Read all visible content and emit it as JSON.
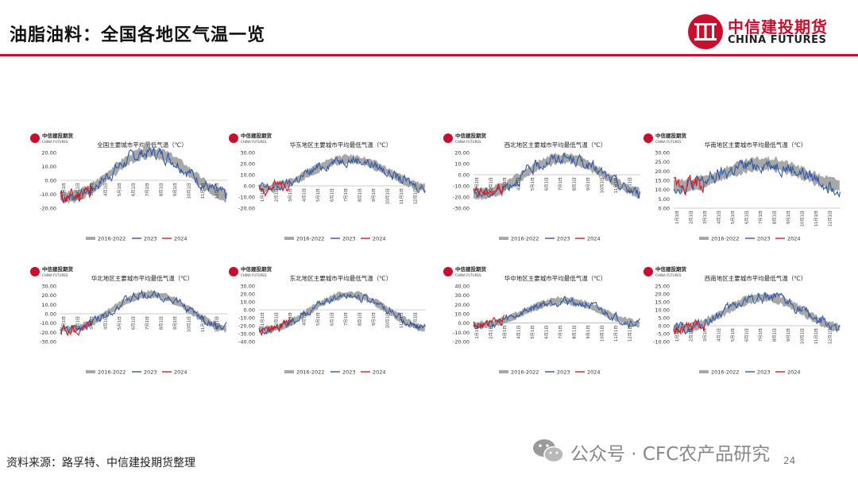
{
  "page": {
    "title": "油脂油料：全国各地区气温一览",
    "logo_cn": "中信建投期货",
    "logo_en": "CHINA FUTURES",
    "source": "资料来源：路孚特、中信建投期货整理",
    "watermark": "公众号 · CFC农产品研究",
    "page_number": "24",
    "mini_logo_cn": "中信建投期货",
    "mini_logo_en": "CHINA FUTURES"
  },
  "colors": {
    "brand_red": "#c8102e",
    "band": "#a8a8a8",
    "line_2023": "#2f58a6",
    "line_2024": "#d42027"
  },
  "legend": [
    "2016-2022",
    "2023",
    "2024"
  ],
  "months": [
    "1月1日",
    "2月1日",
    "3月1日",
    "4月1日",
    "5月1日",
    "6月1日",
    "7月1日",
    "8月1日",
    "9月1日",
    "10月1日",
    "11月1日",
    "12月1日"
  ],
  "chart_data": [
    {
      "type": "line",
      "title": "全国主要城市平均最低气温（℃）",
      "yticks": [
        "20.00",
        "10.00",
        "0.00",
        "-10.00",
        "-20.00"
      ],
      "ylim": [
        -20,
        20
      ],
      "params": {
        "mean": 4,
        "amp": 16,
        "band": 3.5
      },
      "series": [
        {
          "name": "2016-2022",
          "kind": "range band"
        },
        {
          "name": "2023"
        },
        {
          "name": "2024"
        }
      ]
    },
    {
      "type": "line",
      "title": "华东地区主要城市平均最低气温（℃）",
      "yticks": [
        "30.00",
        "20.00",
        "10.00",
        "0.00",
        "-10.00",
        "-20.00"
      ],
      "ylim": [
        -20,
        30
      ],
      "params": {
        "mean": 11,
        "amp": 13,
        "band": 3.5
      },
      "series": [
        {
          "name": "2016-2022",
          "kind": "range band"
        },
        {
          "name": "2023"
        },
        {
          "name": "2024"
        }
      ]
    },
    {
      "type": "line",
      "title": "西北地区主要城市平均最低气温（℃）",
      "yticks": [
        "20.00",
        "10.00",
        "0.00",
        "-10.00",
        "-20.00",
        "-30.00"
      ],
      "ylim": [
        -30,
        20
      ],
      "params": {
        "mean": -1,
        "amp": 16,
        "band": 4
      },
      "series": [
        {
          "name": "2016-2022",
          "kind": "range band"
        },
        {
          "name": "2023"
        },
        {
          "name": "2024"
        }
      ]
    },
    {
      "type": "line",
      "title": "华南地区主要城市平均最低气温（℃）",
      "yticks": [
        "30.00",
        "25.00",
        "20.00",
        "15.00",
        "10.00",
        "5.00",
        "0.00"
      ],
      "ylim": [
        0,
        30
      ],
      "params": {
        "mean": 18,
        "amp": 6,
        "band": 3
      },
      "series": [
        {
          "name": "2016-2022",
          "kind": "range band"
        },
        {
          "name": "2023"
        },
        {
          "name": "2024"
        }
      ]
    },
    {
      "type": "line",
      "title": "华北地区主要城市平均最低气温（℃）",
      "yticks": [
        "30.00",
        "20.00",
        "10.00",
        "0.00",
        "-10.00",
        "-20.00",
        "-30.00"
      ],
      "ylim": [
        -30,
        30
      ],
      "params": {
        "mean": 2,
        "amp": 19,
        "band": 3.5
      },
      "series": [
        {
          "name": "2016-2022",
          "kind": "range band"
        },
        {
          "name": "2023"
        },
        {
          "name": "2024"
        }
      ]
    },
    {
      "type": "line",
      "title": "东北地区主要城市平均最低气温（℃）",
      "yticks": [
        "30.00",
        "20.00",
        "10.00",
        "0.00",
        "-10.00",
        "-20.00",
        "-30.00",
        "-40.00"
      ],
      "ylim": [
        -40,
        30
      ],
      "params": {
        "mean": -3,
        "amp": 22,
        "band": 4
      },
      "series": [
        {
          "name": "2016-2022",
          "kind": "range band"
        },
        {
          "name": "2023"
        },
        {
          "name": "2024"
        }
      ]
    },
    {
      "type": "line",
      "title": "华中地区主要城市平均最低气温（℃）",
      "yticks": [
        "40.00",
        "30.00",
        "20.00",
        "10.00",
        "0.00",
        "-10.00",
        "-20.00"
      ],
      "ylim": [
        -20,
        40
      ],
      "params": {
        "mean": 11,
        "amp": 13,
        "band": 3.5
      },
      "series": [
        {
          "name": "2016-2022",
          "kind": "range band"
        },
        {
          "name": "2023"
        },
        {
          "name": "2024"
        }
      ]
    },
    {
      "type": "line",
      "title": "西南地区主要城市平均最低气温（℃）",
      "yticks": [
        "25.00",
        "20.00",
        "15.00",
        "10.00",
        "5.00",
        "0.00",
        "-5.00",
        "-10.00"
      ],
      "ylim": [
        -10,
        25
      ],
      "params": {
        "mean": 8,
        "amp": 10,
        "band": 2.5
      },
      "series": [
        {
          "name": "2016-2022",
          "kind": "range band"
        },
        {
          "name": "2023"
        },
        {
          "name": "2024"
        }
      ]
    }
  ]
}
